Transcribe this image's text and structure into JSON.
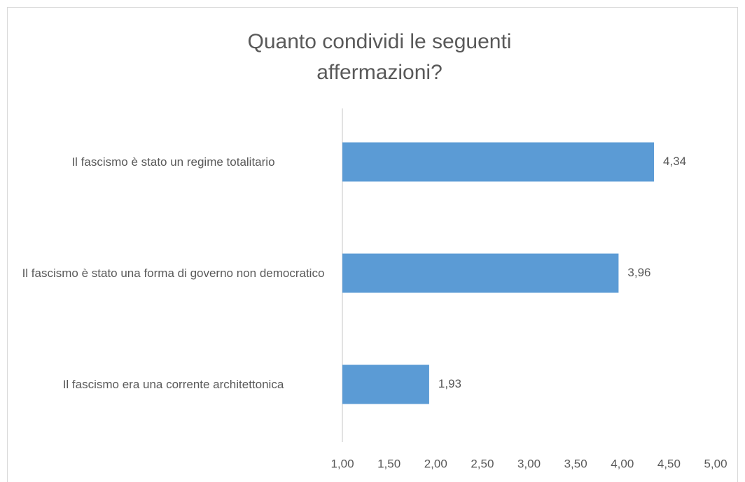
{
  "chart_data": {
    "type": "barh",
    "title": "Quanto condividi le seguenti affermazioni?",
    "categories": [
      "Il fascismo è stato un regime totalitario",
      "Il fascismo è stato una forma di governo non democratico",
      "Il fascismo era una corrente architettonica"
    ],
    "values": [
      4.34,
      3.96,
      1.93
    ],
    "value_labels": [
      "4,34",
      "3,96",
      "1,93"
    ],
    "color": "#5b9bd5",
    "xlim": [
      1,
      5
    ],
    "xticks": [
      {
        "value": 1,
        "label": "1,00"
      },
      {
        "value": 1.5,
        "label": "1,50"
      },
      {
        "value": 2,
        "label": "2,00"
      },
      {
        "value": 2.5,
        "label": "2,50"
      },
      {
        "value": 3,
        "label": "3,00"
      },
      {
        "value": 3.5,
        "label": "3,50"
      },
      {
        "value": 4,
        "label": "4,00"
      },
      {
        "value": 4.5,
        "label": "4,50"
      },
      {
        "value": 5,
        "label": "5,00"
      }
    ],
    "grid": false
  }
}
